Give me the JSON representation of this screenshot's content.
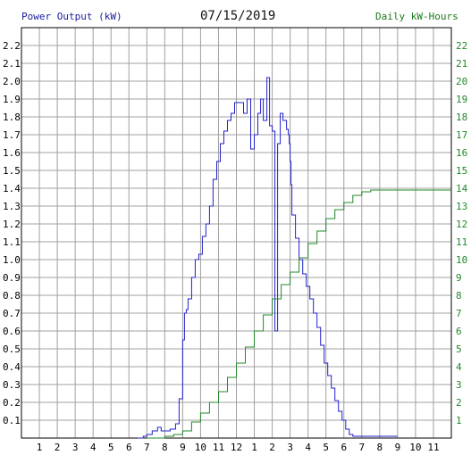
{
  "header": {
    "left_title": "Power Output (kW)",
    "date": "07/15/2019",
    "right_title": "Daily kW-Hours"
  },
  "colors": {
    "power": "#2222cc",
    "energy": "#22882a",
    "grid": "#a0a0a0",
    "axis": "#000000"
  },
  "chart_data": {
    "type": "line",
    "title": "07/15/2019",
    "ylabel": "Power Output (kW)",
    "y2label": "Daily kW-Hours",
    "xlim": [
      0,
      24
    ],
    "ylim": [
      0,
      2.3
    ],
    "y2lim": [
      0,
      23
    ],
    "grid": true,
    "x_ticks": [
      "1",
      "2",
      "3",
      "4",
      "5",
      "6",
      "7",
      "8",
      "9",
      "10",
      "11",
      "12",
      "1",
      "2",
      "3",
      "4",
      "5",
      "6",
      "7",
      "8",
      "9",
      "10",
      "11"
    ],
    "y_ticks": [
      "0.1",
      "0.2",
      "0.3",
      "0.4",
      "0.5",
      "0.6",
      "0.7",
      "0.8",
      "0.9",
      "1.0",
      "1.1",
      "1.2",
      "1.3",
      "1.4",
      "1.5",
      "1.6",
      "1.7",
      "1.8",
      "1.9",
      "2.0",
      "2.1",
      "2.2"
    ],
    "y2_ticks": [
      "1",
      "2",
      "3",
      "4",
      "5",
      "6",
      "7",
      "8",
      "9",
      "10",
      "11",
      "12",
      "13",
      "14",
      "15",
      "16",
      "17",
      "18",
      "19",
      "20",
      "21",
      "22"
    ],
    "series": [
      {
        "name": "Power Output (kW)",
        "axis": "left",
        "x": [
          6.5,
          6.8,
          7.0,
          7.3,
          7.6,
          7.8,
          8.0,
          8.3,
          8.6,
          8.8,
          9.0,
          9.1,
          9.2,
          9.3,
          9.5,
          9.7,
          9.9,
          10.1,
          10.3,
          10.5,
          10.7,
          10.9,
          11.1,
          11.3,
          11.5,
          11.7,
          11.9,
          12.0,
          12.2,
          12.4,
          12.6,
          12.8,
          13.0,
          13.2,
          13.35,
          13.5,
          13.7,
          13.85,
          14.0,
          14.15,
          14.3,
          14.45,
          14.6,
          14.8,
          14.9,
          14.95,
          15.0,
          15.05,
          15.1,
          15.3,
          15.5,
          15.7,
          15.9,
          16.1,
          16.3,
          16.5,
          16.7,
          16.9,
          17.1,
          17.3,
          17.5,
          17.7,
          17.9,
          18.1,
          18.3,
          18.5,
          18.7,
          18.9,
          19.1,
          19.3,
          19.6,
          19.9,
          20.2,
          20.5,
          20.8,
          21.0
        ],
        "values": [
          0.0,
          0.01,
          0.02,
          0.04,
          0.06,
          0.04,
          0.04,
          0.05,
          0.08,
          0.22,
          0.55,
          0.7,
          0.72,
          0.78,
          0.9,
          1.0,
          1.03,
          1.13,
          1.2,
          1.3,
          1.45,
          1.55,
          1.65,
          1.72,
          1.78,
          1.82,
          1.88,
          1.88,
          1.88,
          1.82,
          1.9,
          1.62,
          1.7,
          1.82,
          1.9,
          1.78,
          2.02,
          1.75,
          1.72,
          0.6,
          1.65,
          1.82,
          1.78,
          1.73,
          1.7,
          1.65,
          1.55,
          1.42,
          1.25,
          1.12,
          1.0,
          0.92,
          0.85,
          0.78,
          0.7,
          0.62,
          0.52,
          0.42,
          0.35,
          0.28,
          0.21,
          0.15,
          0.1,
          0.05,
          0.02,
          0.01,
          0.01,
          0.01,
          0.01,
          0.01,
          0.01,
          0.01,
          0.01,
          0.01,
          0.01,
          0.01
        ]
      },
      {
        "name": "Daily kW-Hours",
        "axis": "right",
        "x": [
          7.0,
          8.0,
          8.5,
          9.0,
          9.5,
          10.0,
          10.5,
          11.0,
          11.5,
          12.0,
          12.5,
          13.0,
          13.5,
          14.0,
          14.5,
          15.0,
          15.5,
          16.0,
          16.5,
          17.0,
          17.5,
          18.0,
          18.5,
          19.0,
          19.5,
          20.0,
          20.5,
          21.0,
          22.0,
          23.0,
          24.0
        ],
        "values": [
          0.0,
          0.1,
          0.2,
          0.4,
          0.9,
          1.4,
          2.0,
          2.6,
          3.4,
          4.2,
          5.1,
          6.0,
          6.9,
          7.8,
          8.6,
          9.3,
          10.1,
          10.9,
          11.6,
          12.3,
          12.8,
          13.2,
          13.6,
          13.8,
          13.9,
          13.9,
          13.9,
          13.9,
          13.9,
          13.9,
          13.9
        ]
      }
    ]
  }
}
